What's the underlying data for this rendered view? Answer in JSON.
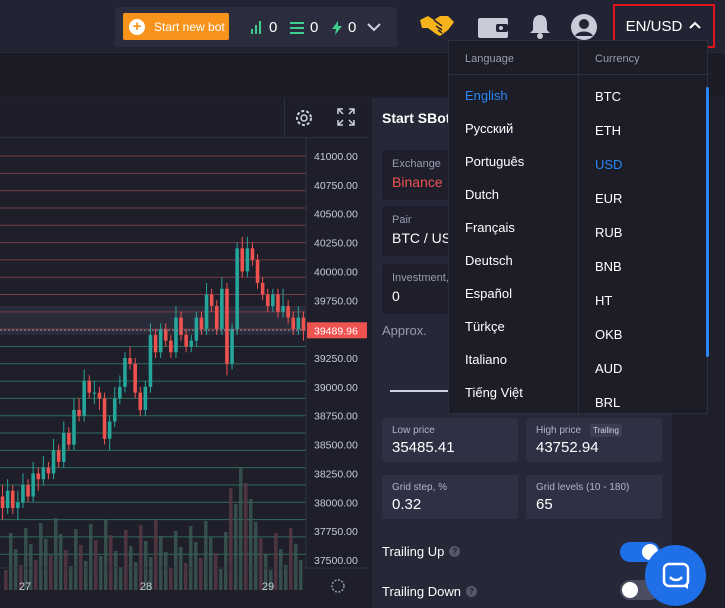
{
  "topbar": {
    "new_bot_label": "Start new bot",
    "counters": [
      {
        "icon": "signal-bars-icon",
        "value": "0",
        "color": "#3ecf8e"
      },
      {
        "icon": "stack-icon",
        "value": "0",
        "color": "#3ecf8e"
      },
      {
        "icon": "lightning-icon",
        "value": "0",
        "color": "#3ecf8e"
      }
    ],
    "lang_currency_label": "EN/USD"
  },
  "chart": {
    "price_ticks": [
      "41000.00",
      "40750.00",
      "40500.00",
      "40250.00",
      "40000.00",
      "39750.00",
      "39250.00",
      "39000.00",
      "38750.00",
      "38500.00",
      "38250.00",
      "38000.00",
      "37750.00",
      "37500.00"
    ],
    "current_price": "39489.96",
    "date_ticks": [
      "27",
      "28",
      "29"
    ],
    "colors": {
      "up": "#26a69a",
      "down": "#ef5350",
      "price_tag": "#ef5350"
    }
  },
  "chart_data": {
    "type": "candlestick",
    "y_range": [
      37400,
      41100
    ],
    "current_price": 39489.96,
    "grid_levels": [
      41000,
      40850,
      40700,
      40550,
      40400,
      40250,
      40100,
      39950,
      39800,
      39650,
      39500,
      39350,
      39200,
      39050,
      38900,
      38750,
      38600,
      38450,
      38300,
      38150,
      38000,
      37850,
      37700,
      37550
    ],
    "candles": [
      [
        38050,
        37950,
        38150,
        37850
      ],
      [
        37950,
        38100,
        38200,
        37900
      ],
      [
        38100,
        37950,
        38150,
        37900
      ],
      [
        37950,
        38000,
        38100,
        37850
      ],
      [
        38000,
        38150,
        38250,
        37950
      ],
      [
        38150,
        38050,
        38200,
        38000
      ],
      [
        38050,
        38250,
        38350,
        38000
      ],
      [
        38250,
        38200,
        38300,
        38100
      ],
      [
        38200,
        38300,
        38400,
        38150
      ],
      [
        38300,
        38250,
        38350,
        38200
      ],
      [
        38250,
        38450,
        38550,
        38200
      ],
      [
        38450,
        38350,
        38500,
        38300
      ],
      [
        38350,
        38600,
        38700,
        38300
      ],
      [
        38600,
        38500,
        38650,
        38450
      ],
      [
        38500,
        38800,
        38900,
        38450
      ],
      [
        38800,
        38750,
        38900,
        38700
      ],
      [
        38750,
        39050,
        39150,
        38700
      ],
      [
        39050,
        38950,
        39100,
        38900
      ],
      [
        38950,
        38950,
        39050,
        38850
      ],
      [
        38950,
        38900,
        39000,
        38800
      ],
      [
        38900,
        38550,
        38950,
        38500
      ],
      [
        38550,
        38700,
        38750,
        38450
      ],
      [
        38700,
        38900,
        39000,
        38650
      ],
      [
        38900,
        39000,
        39100,
        38850
      ],
      [
        39000,
        39250,
        39300,
        38950
      ],
      [
        39250,
        39200,
        39350,
        39150
      ],
      [
        39200,
        38950,
        39250,
        38900
      ],
      [
        38950,
        38800,
        39000,
        38750
      ],
      [
        38800,
        39000,
        39050,
        38750
      ],
      [
        39000,
        39450,
        39550,
        38950
      ],
      [
        39450,
        39300,
        39500,
        39250
      ],
      [
        39300,
        39500,
        39550,
        39250
      ],
      [
        39500,
        39400,
        39550,
        39350
      ],
      [
        39400,
        39300,
        39450,
        39250
      ],
      [
        39300,
        39600,
        39700,
        39250
      ],
      [
        39600,
        39450,
        39650,
        39400
      ],
      [
        39450,
        39350,
        39500,
        39300
      ],
      [
        39350,
        39400,
        39450,
        39300
      ],
      [
        39400,
        39600,
        39650,
        39350
      ],
      [
        39600,
        39500,
        39650,
        39450
      ],
      [
        39500,
        39800,
        39900,
        39450
      ],
      [
        39800,
        39700,
        39850,
        39650
      ],
      [
        39700,
        39500,
        39750,
        39450
      ],
      [
        39500,
        39850,
        39950,
        39450
      ],
      [
        39850,
        39200,
        39900,
        39100
      ],
      [
        39200,
        39500,
        39550,
        39150
      ],
      [
        39500,
        40200,
        40250,
        39450
      ],
      [
        40200,
        40000,
        40300,
        39950
      ],
      [
        40000,
        40200,
        40300,
        39950
      ],
      [
        40200,
        40100,
        40250,
        40050
      ],
      [
        40100,
        39900,
        40150,
        39850
      ],
      [
        39900,
        39800,
        39950,
        39750
      ],
      [
        39800,
        39700,
        39850,
        39650
      ],
      [
        39700,
        39800,
        39850,
        39650
      ],
      [
        39800,
        39650,
        39850,
        39600
      ],
      [
        39650,
        39700,
        39850,
        39600
      ],
      [
        39700,
        39600,
        39750,
        39550
      ],
      [
        39600,
        39500,
        39650,
        39450
      ],
      [
        39500,
        39600,
        39700,
        39450
      ],
      [
        39600,
        39490,
        39650,
        39400
      ]
    ],
    "x_ticks": [
      "27",
      "28",
      "29"
    ]
  },
  "right_panel": {
    "title": "Start SBot",
    "exchange_label": "Exchange",
    "exchange_value": "Binance",
    "pair_label": "Pair",
    "pair_value": "BTC / USD",
    "investment_label": "Investment,",
    "investment_value": "0",
    "approx_label": "Approx.",
    "low_price_label": "Low price",
    "low_price_value": "35485.41",
    "high_price_label": "High price",
    "high_price_badge": "Trailing",
    "high_price_value": "43752.94",
    "grid_step_label": "Grid step, %",
    "grid_step_value": "0.32",
    "grid_levels_label": "Grid levels (10 - 180)",
    "grid_levels_value": "65",
    "trailing_up_label": "Trailing Up",
    "trailing_up_on": true,
    "trailing_down_label": "Trailing Down",
    "trailing_down_on": false
  },
  "dropdown": {
    "language_header": "Language",
    "currency_header": "Currency",
    "languages": [
      "English",
      "Русский",
      "Português",
      "Dutch",
      "Français",
      "Deutsch",
      "Español",
      "Türkçe",
      "Italiano",
      "Tiếng Việt"
    ],
    "selected_language": "English",
    "currencies": [
      "BTC",
      "ETH",
      "USD",
      "EUR",
      "RUB",
      "BNB",
      "HT",
      "OKB",
      "AUD",
      "BRL"
    ],
    "selected_currency": "USD",
    "accent": "#2a86f5"
  }
}
